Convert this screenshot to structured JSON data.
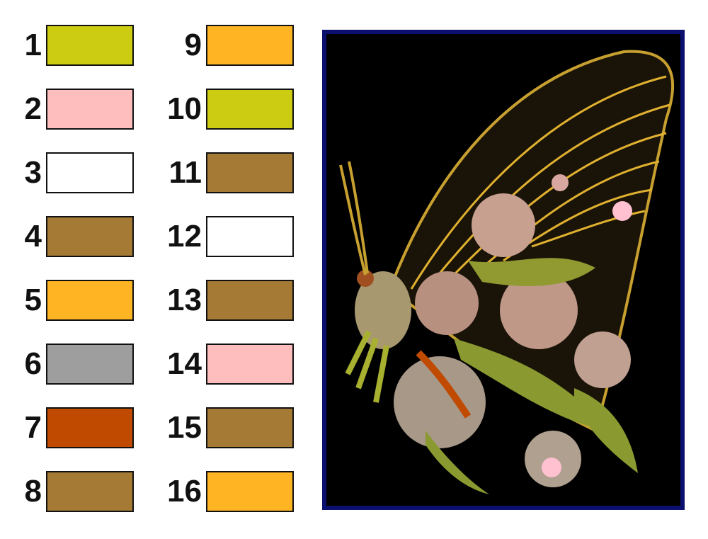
{
  "legend": [
    {
      "number": "1",
      "color": "#cccc12"
    },
    {
      "number": "2",
      "color": "#ffbebe"
    },
    {
      "number": "3",
      "color": "#ffffff"
    },
    {
      "number": "4",
      "color": "#a57a35"
    },
    {
      "number": "5",
      "color": "#ffb423"
    },
    {
      "number": "6",
      "color": "#9e9e9e"
    },
    {
      "number": "7",
      "color": "#c04a00"
    },
    {
      "number": "8",
      "color": "#a57a35"
    },
    {
      "number": "9",
      "color": "#ffb423"
    },
    {
      "number": "10",
      "color": "#cccc12"
    },
    {
      "number": "11",
      "color": "#a57a35"
    },
    {
      "number": "12",
      "color": "#ffffff"
    },
    {
      "number": "13",
      "color": "#a57a35"
    },
    {
      "number": "14",
      "color": "#ffbebe"
    },
    {
      "number": "15",
      "color": "#a57a35"
    },
    {
      "number": "16",
      "color": "#ffb423"
    }
  ],
  "image": {
    "subject": "embroidered butterfly with flowers",
    "frame_color": "#0b0f6e",
    "background": "#000000"
  }
}
